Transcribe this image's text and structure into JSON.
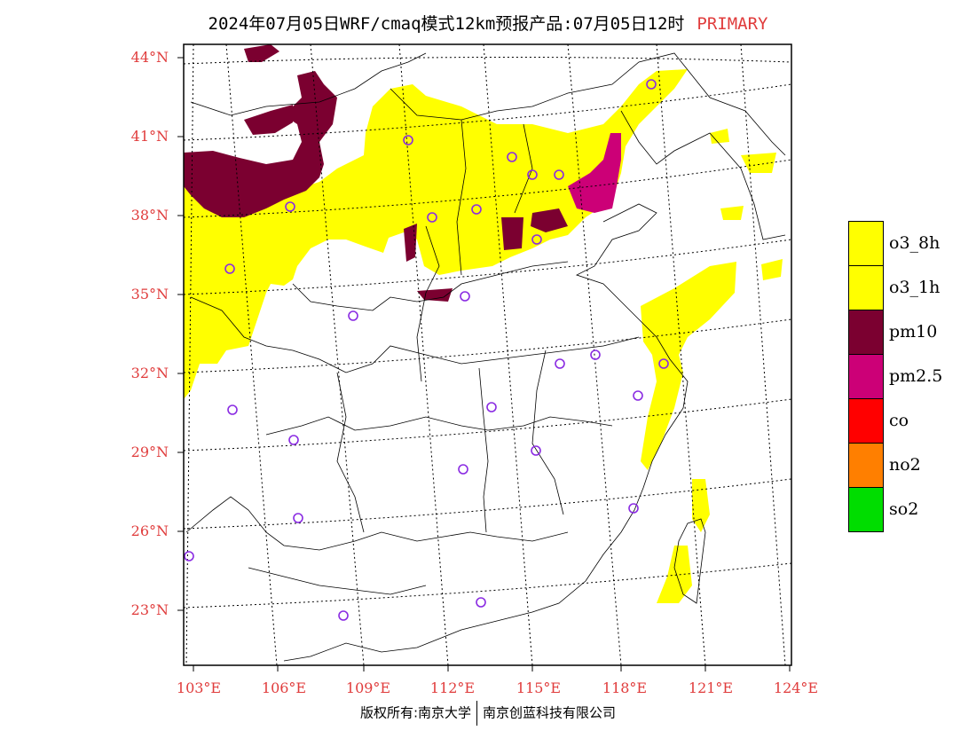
{
  "header": {
    "title": "2024年07月05日WRF/cmaq模式12km预报产品:07月05日12时",
    "product": "PRIMARY"
  },
  "axes": {
    "latitudes": [
      "44°N",
      "41°N",
      "38°N",
      "35°N",
      "32°N",
      "29°N",
      "26°N",
      "23°N"
    ],
    "longitudes": [
      "103°E",
      "106°E",
      "109°E",
      "112°E",
      "115°E",
      "118°E",
      "121°E",
      "124°E"
    ]
  },
  "legend": [
    {
      "label": "o3_8h",
      "color": "#ffff00"
    },
    {
      "label": "o3_1h",
      "color": "#ffff00"
    },
    {
      "label": "pm10",
      "color": "#7b0030"
    },
    {
      "label": "pm2.5",
      "color": "#cc0077"
    },
    {
      "label": "co",
      "color": "#ff0000"
    },
    {
      "label": "no2",
      "color": "#ff7f00"
    },
    {
      "label": "so2",
      "color": "#00dd00"
    }
  ],
  "footer": {
    "left": "版权所有:南京大学",
    "right": "南京创蓝科技有限公司"
  },
  "colors": {
    "axis_text": "#e03c3c",
    "o3": "#ffff00",
    "pm10": "#7b0030",
    "pm25": "#cc0077",
    "station_marker": "#8a2be2"
  }
}
